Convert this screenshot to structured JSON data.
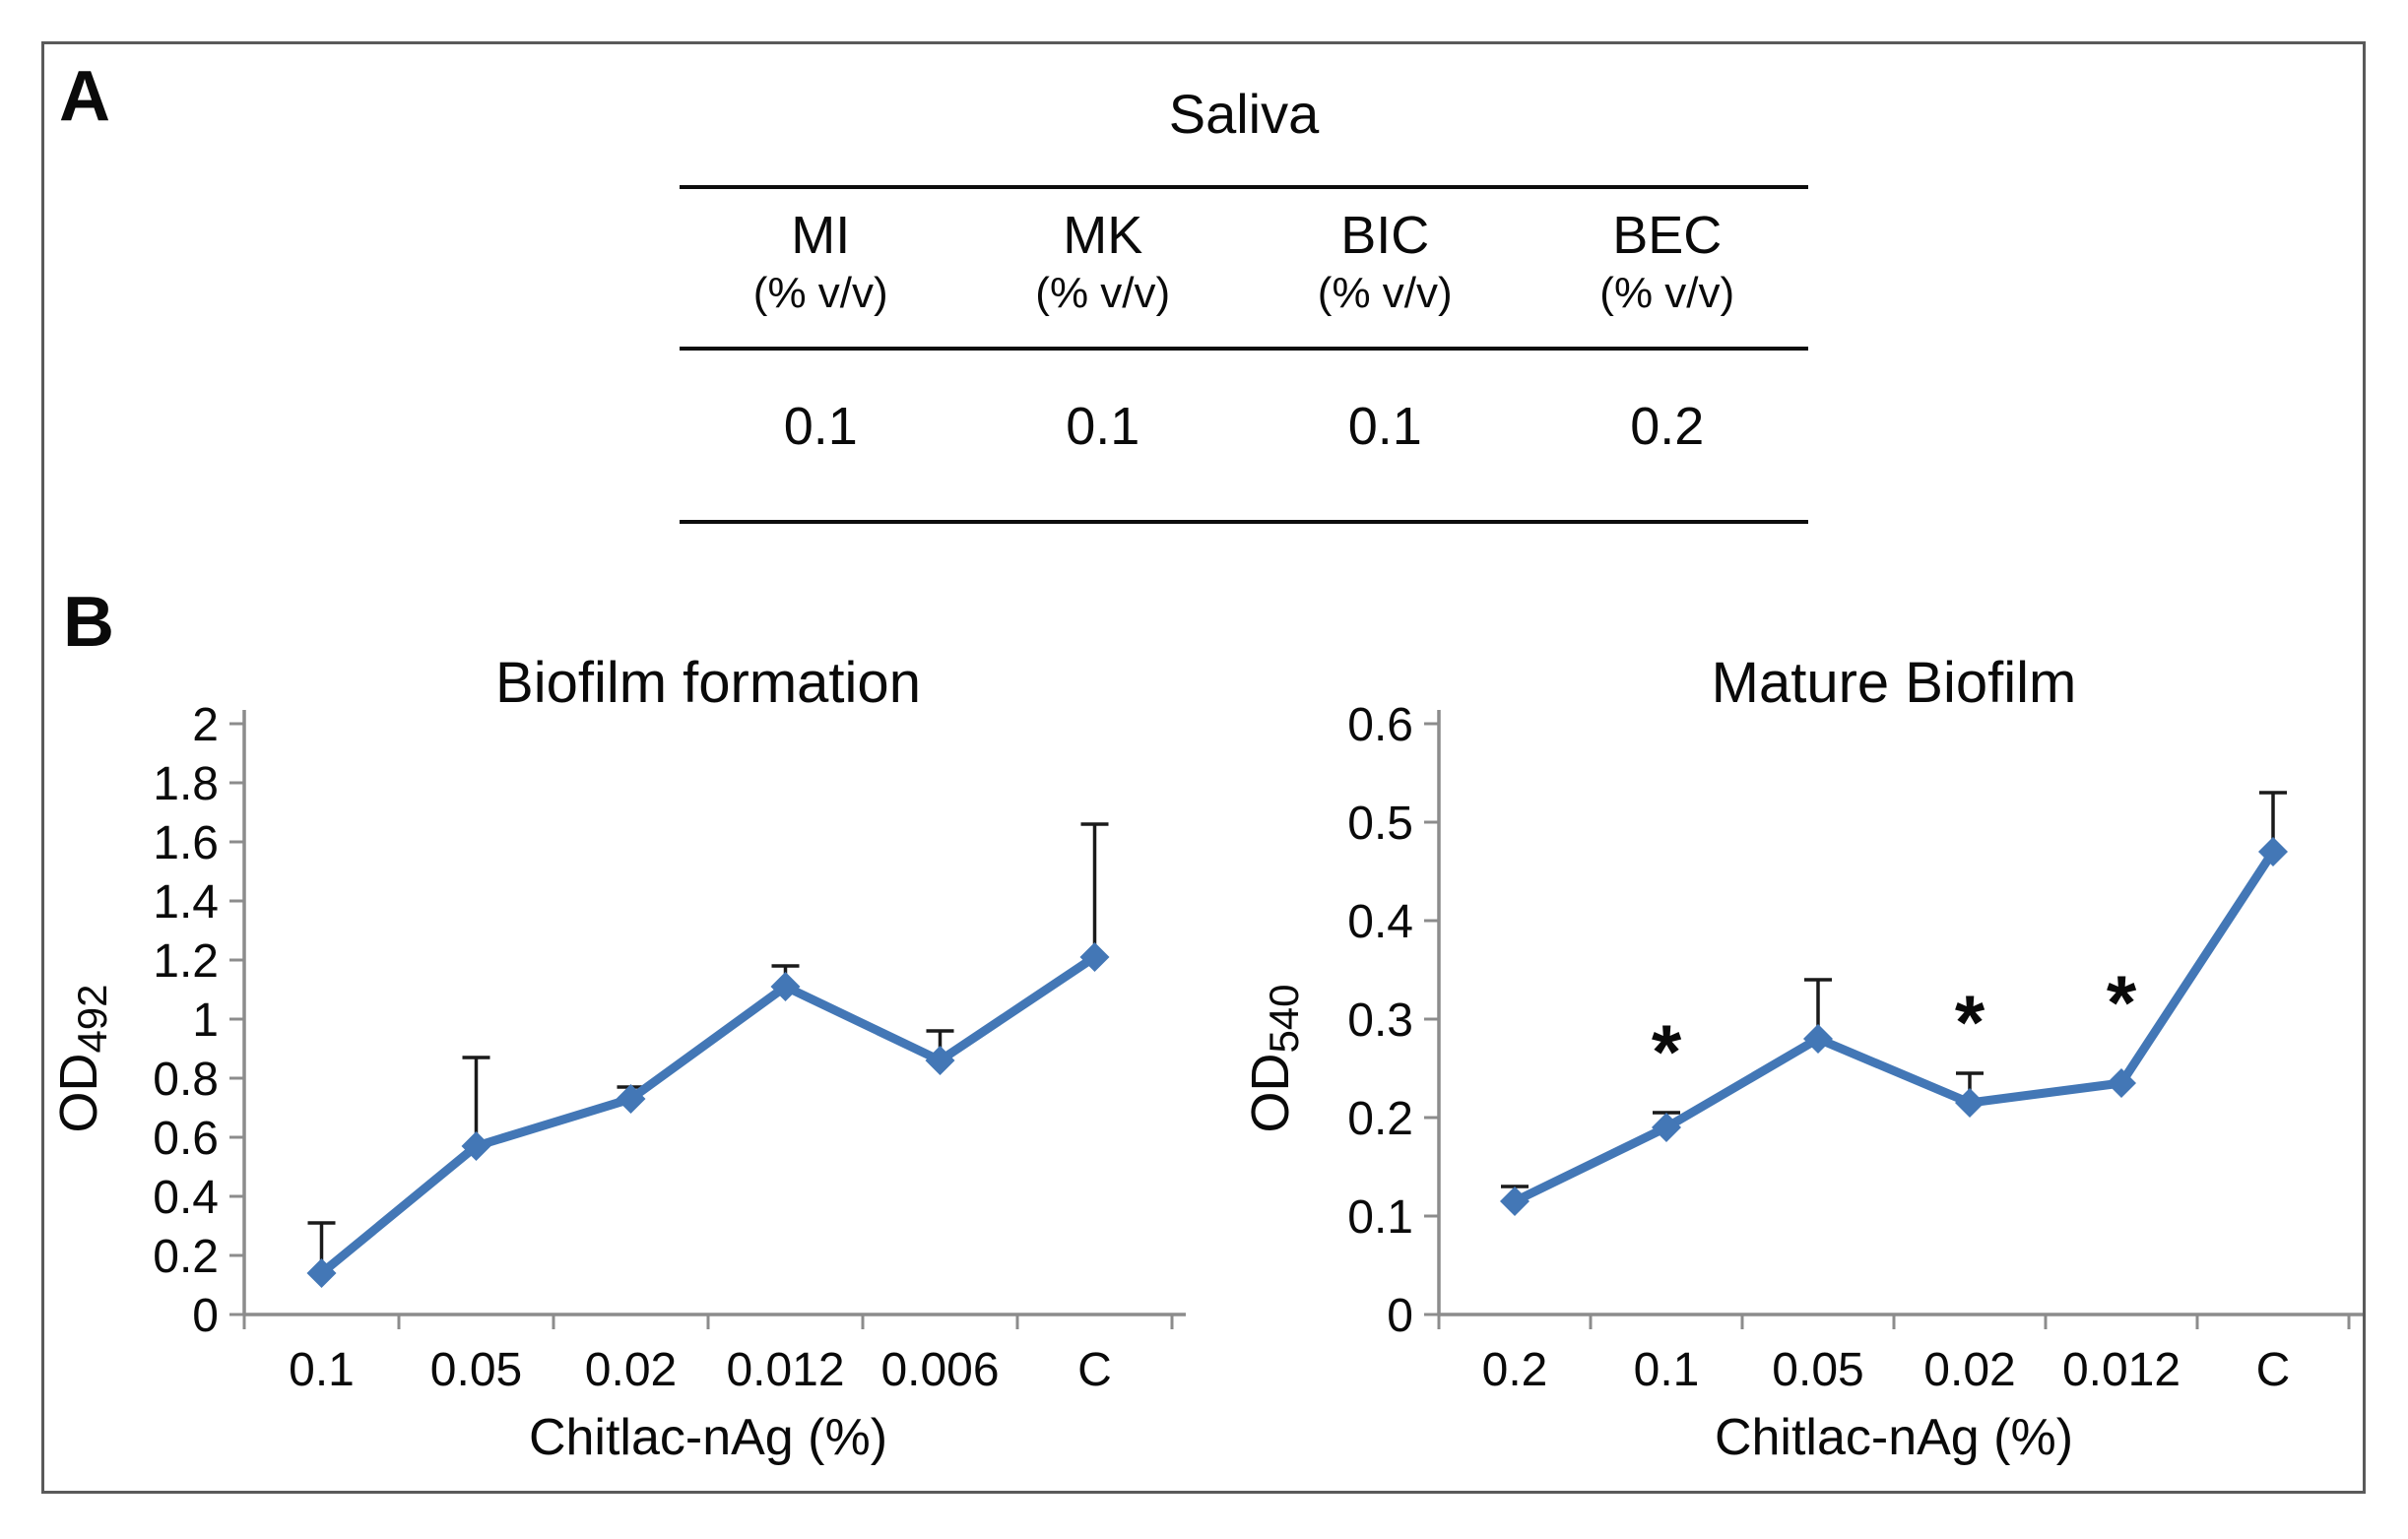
{
  "figure": {
    "panel_a_label": "A",
    "panel_b_label": "B"
  },
  "table": {
    "title": "Saliva",
    "columns": [
      {
        "name": "MI",
        "unit": "(% v/v)"
      },
      {
        "name": "MK",
        "unit": "(% v/v)"
      },
      {
        "name": "BIC",
        "unit": "(% v/v)"
      },
      {
        "name": "BEC",
        "unit": "(% v/v)"
      }
    ],
    "values": [
      "0.1",
      "0.1",
      "0.1",
      "0.2"
    ]
  },
  "chart_data": [
    {
      "type": "line",
      "title": "Biofilm formation",
      "xlabel": "Chitlac-nAg (%)",
      "ylabel_prefix": "OD",
      "ylabel_sub": "492",
      "categories": [
        "0.1",
        "0.05",
        "0.02",
        "0.012",
        "0.006",
        "C"
      ],
      "values": [
        0.14,
        0.57,
        0.73,
        1.11,
        0.86,
        1.21
      ],
      "error_top": [
        0.31,
        0.87,
        0.77,
        1.18,
        0.96,
        1.66
      ],
      "ylim": [
        0,
        2
      ],
      "y_ticks": [
        "0",
        "0.2",
        "0.4",
        "0.6",
        "0.8",
        "1",
        "1.2",
        "1.4",
        "1.6",
        "1.8",
        "2"
      ],
      "grid": false,
      "legend": "none",
      "annotations": []
    },
    {
      "type": "line",
      "title": "Mature Biofilm",
      "xlabel": "Chitlac-nAg (%)",
      "ylabel_prefix": "OD",
      "ylabel_sub": "540",
      "categories": [
        "0.2",
        "0.1",
        "0.05",
        "0.02",
        "0.012",
        "C"
      ],
      "values": [
        0.115,
        0.19,
        0.28,
        0.215,
        0.235,
        0.47
      ],
      "error_top": [
        0.13,
        0.205,
        0.34,
        0.245,
        0.235,
        0.53
      ],
      "ylim": [
        0,
        0.6
      ],
      "y_ticks": [
        "0",
        "0.1",
        "0.2",
        "0.3",
        "0.4",
        "0.5",
        "0.6"
      ],
      "grid": false,
      "legend": "none",
      "annotations": [
        {
          "index": 1,
          "y": 0.26,
          "text": "*"
        },
        {
          "index": 3,
          "y": 0.29,
          "text": "*"
        },
        {
          "index": 4,
          "y": 0.31,
          "text": "*"
        }
      ]
    }
  ],
  "style": {
    "line_color": "#4377b6",
    "marker_color": "#4377b6",
    "error_color": "#1a1a1a",
    "axis_color": "#8c8c8c",
    "text_color": "#0a0a0a"
  }
}
